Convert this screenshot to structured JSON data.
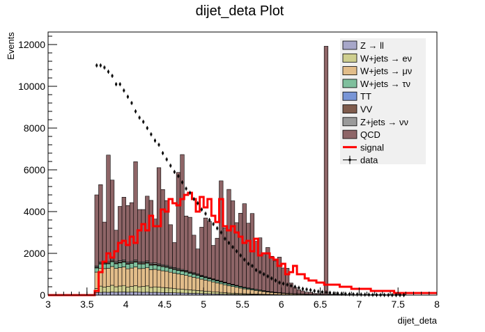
{
  "chart_data": {
    "type": "histogram",
    "title": "dijet_deta Plot",
    "xlabel": "dijet_deta",
    "ylabel": "Events",
    "xlim": [
      3,
      8
    ],
    "ylim": [
      0,
      12600
    ],
    "bin_width": 0.05,
    "x_ticks": [
      3,
      3.5,
      4,
      4.5,
      5,
      5.5,
      6,
      6.5,
      7,
      7.5,
      8
    ],
    "x_tick_labels": [
      "3",
      "3.5",
      "4",
      "4.5",
      "5",
      "5.5",
      "6",
      "6.5",
      "7",
      "7.5",
      "8"
    ],
    "y_ticks": [
      0,
      2000,
      4000,
      6000,
      8000,
      10000,
      12000
    ],
    "y_tick_labels": [
      "0",
      "2000",
      "4000",
      "6000",
      "8000",
      "10000",
      "12000"
    ],
    "legend": {
      "position": "top-right",
      "entries": [
        {
          "label": "Z → ll",
          "color": "#a7a7c9",
          "kind": "box"
        },
        {
          "label": "W+jets → eν",
          "color": "#cfcf8f",
          "kind": "box"
        },
        {
          "label": "W+jets → μν",
          "color": "#e2bd8a",
          "kind": "box"
        },
        {
          "label": "W+jets → τν",
          "color": "#7fbf9d",
          "kind": "box"
        },
        {
          "label": "TT",
          "color": "#7895d6",
          "kind": "box"
        },
        {
          "label": "VV",
          "color": "#7f5c4d",
          "kind": "box"
        },
        {
          "label": "Z+jets → νν",
          "color": "#9a9a9a",
          "kind": "box"
        },
        {
          "label": "QCD",
          "color": "#8e6567",
          "kind": "box"
        },
        {
          "label": "signal",
          "color": "#ff0000",
          "kind": "line"
        },
        {
          "label": "data",
          "color": "#000000",
          "kind": "marker"
        }
      ]
    },
    "stack": [
      {
        "name": "Z → ll",
        "color": "#a7a7c9",
        "bin_start": 3.6,
        "values": [
          120,
          130,
          140,
          135,
          150,
          140,
          145,
          150,
          140,
          145,
          150,
          140,
          135,
          140,
          130,
          135,
          130,
          125,
          120,
          115,
          110,
          105,
          100,
          95,
          90,
          85,
          80,
          75,
          70,
          65,
          60,
          55,
          50,
          45,
          40,
          38,
          35,
          32,
          30,
          28,
          25,
          22,
          20,
          18,
          16,
          14,
          12,
          10,
          9,
          8,
          7,
          6,
          5,
          5,
          4,
          4,
          3,
          3,
          3,
          2,
          2,
          2,
          2,
          1,
          1,
          1,
          1,
          1,
          1,
          1,
          1,
          1,
          1,
          1,
          1,
          1,
          1,
          1,
          1,
          1
        ]
      },
      {
        "name": "W+jets → eν",
        "color": "#cfcf8f",
        "bin_start": 3.6,
        "values": [
          200,
          300,
          250,
          280,
          320,
          260,
          290,
          310,
          250,
          270,
          300,
          260,
          280,
          300,
          240,
          260,
          250,
          240,
          230,
          220,
          200,
          190,
          180,
          170,
          160,
          150,
          140,
          130,
          120,
          110,
          100,
          90,
          80,
          70,
          60,
          55,
          50,
          45,
          40,
          35,
          30,
          28,
          25,
          22,
          20,
          18,
          15,
          12,
          10,
          9,
          8,
          7,
          6,
          5,
          4,
          3,
          3,
          2,
          2,
          2,
          2,
          1,
          1,
          1,
          1,
          1,
          1,
          1,
          1,
          1,
          1,
          1,
          1,
          1,
          1,
          1,
          1,
          1,
          1,
          1
        ]
      },
      {
        "name": "W+jets → μν",
        "color": "#e2bd8a",
        "bin_start": 3.6,
        "values": [
          780,
          850,
          880,
          870,
          900,
          880,
          880,
          890,
          870,
          880,
          900,
          870,
          860,
          870,
          850,
          840,
          820,
          800,
          790,
          760,
          740,
          720,
          700,
          680,
          650,
          620,
          590,
          560,
          530,
          500,
          470,
          440,
          410,
          380,
          350,
          320,
          290,
          260,
          230,
          210,
          190,
          170,
          150,
          130,
          110,
          95,
          80,
          70,
          60,
          50,
          45,
          40,
          35,
          30,
          25,
          20,
          18,
          15,
          12,
          10,
          9,
          8,
          7,
          6,
          5,
          4,
          3,
          3,
          2,
          2,
          2,
          2,
          1,
          1,
          1,
          1,
          1,
          1,
          1,
          1
        ]
      },
      {
        "name": "W+jets → τν",
        "color": "#7fbf9d",
        "bin_start": 3.6,
        "values": [
          200,
          210,
          220,
          215,
          230,
          220,
          225,
          230,
          220,
          225,
          230,
          220,
          215,
          220,
          210,
          205,
          200,
          195,
          190,
          180,
          175,
          170,
          165,
          160,
          150,
          140,
          130,
          120,
          110,
          100,
          95,
          90,
          85,
          80,
          75,
          70,
          65,
          60,
          55,
          50,
          45,
          40,
          35,
          30,
          25,
          22,
          20,
          18,
          15,
          12,
          10,
          9,
          8,
          7,
          6,
          5,
          4,
          3,
          3,
          2,
          2,
          2,
          1,
          1,
          1,
          1,
          1,
          1,
          1,
          1,
          1,
          1,
          1,
          1,
          1,
          1,
          1,
          1,
          1,
          1
        ]
      },
      {
        "name": "TT",
        "color": "#7895d6",
        "bin_start": 3.6,
        "values": [
          10,
          10,
          10,
          10,
          10,
          10,
          10,
          10,
          10,
          10,
          10,
          10,
          10,
          10,
          10,
          10,
          10,
          9,
          9,
          9,
          8,
          8,
          8,
          7,
          7,
          6,
          6,
          5,
          5,
          4,
          4,
          3,
          3,
          3,
          2,
          2,
          2,
          2,
          1,
          1,
          1,
          1,
          1,
          1,
          1,
          1,
          1,
          1,
          1,
          1,
          1,
          1,
          1,
          1,
          1,
          1,
          1,
          1,
          1,
          1,
          1,
          1,
          1,
          1,
          1,
          1,
          1,
          1,
          1,
          1,
          1,
          1,
          1,
          1,
          1,
          1,
          1,
          1,
          1,
          1
        ]
      },
      {
        "name": "VV",
        "color": "#7f5c4d",
        "bin_start": 3.6,
        "values": [
          40,
          40,
          42,
          42,
          44,
          44,
          44,
          44,
          44,
          44,
          44,
          44,
          44,
          44,
          42,
          42,
          42,
          40,
          40,
          40,
          38,
          38,
          36,
          36,
          34,
          34,
          32,
          30,
          30,
          28,
          26,
          24,
          22,
          20,
          18,
          16,
          14,
          12,
          11,
          10,
          9,
          8,
          7,
          6,
          5,
          5,
          4,
          4,
          3,
          3,
          3,
          2,
          2,
          2,
          2,
          1,
          1,
          1,
          1,
          1,
          1,
          1,
          1,
          1,
          1,
          1,
          1,
          1,
          1,
          1,
          1,
          1,
          1,
          1,
          1,
          1,
          1,
          1,
          1,
          1
        ]
      },
      {
        "name": "Z+jets → νν",
        "color": "#9a9a9a",
        "bin_start": 3.6,
        "values": [
          50,
          50,
          55,
          55,
          55,
          55,
          55,
          55,
          55,
          55,
          55,
          55,
          55,
          55,
          55,
          52,
          52,
          50,
          50,
          48,
          46,
          44,
          42,
          40,
          38,
          36,
          34,
          32,
          30,
          28,
          26,
          24,
          22,
          20,
          18,
          16,
          14,
          12,
          11,
          10,
          9,
          8,
          7,
          6,
          5,
          5,
          4,
          4,
          3,
          3,
          3,
          2,
          2,
          2,
          2,
          1,
          1,
          1,
          1,
          1,
          1,
          1,
          1,
          1,
          1,
          1,
          1,
          1,
          1,
          1,
          1,
          1,
          1,
          1,
          1,
          1,
          1,
          1,
          1,
          1
        ]
      },
      {
        "name": "QCD",
        "color": "#8e6567",
        "bin_start": 3.6,
        "values": [
          3400,
          3700,
          1900,
          5100,
          3800,
          1500,
          2600,
          3000,
          2700,
          2800,
          4700,
          2500,
          2500,
          3100,
          3000,
          2100,
          4600,
          3600,
          3100,
          2000,
          1200,
          4600,
          5500,
          2600,
          2600,
          1800,
          1200,
          2300,
          2800,
          2700,
          1600,
          2000,
          4800,
          2600,
          4500,
          4000,
          3000,
          3500,
          4000,
          3100,
          3600,
          2300,
          2500,
          1800,
          2100,
          1700,
          1500,
          1700,
          1200,
          1200,
          500,
          300,
          200,
          150,
          100,
          100,
          50,
          50,
          50,
          11900,
          20,
          20,
          20,
          20,
          10,
          10,
          10,
          10,
          10,
          10,
          10,
          10,
          10,
          10,
          10,
          10,
          10,
          10,
          10,
          10
        ]
      }
    ],
    "signal": {
      "name": "signal",
      "color": "#ff0000",
      "x_start": 3.0,
      "values": [
        0,
        0,
        0,
        0,
        0,
        0,
        0,
        0,
        0,
        0,
        0,
        0,
        200,
        1100,
        1600,
        2000,
        1800,
        2100,
        2500,
        2600,
        2400,
        2800,
        2500,
        3100,
        3400,
        3100,
        3800,
        3300,
        3300,
        4100,
        4000,
        4600,
        4400,
        4300,
        4600,
        4800,
        4900,
        4600,
        4000,
        4700,
        4200,
        4600,
        3800,
        3500,
        4600,
        3300,
        3100,
        3300,
        3000,
        2800,
        2500,
        2600,
        2100,
        2700,
        1900,
        2000,
        2000,
        1800,
        1700,
        1400,
        1500,
        1000,
        1100,
        1400,
        1000,
        1000,
        800,
        700,
        700,
        600,
        600,
        500,
        500,
        500,
        500,
        400,
        400,
        400,
        300,
        300,
        300,
        300,
        300,
        200,
        200,
        200,
        200,
        200,
        200,
        100,
        100,
        100,
        100,
        100,
        100,
        100,
        100,
        100,
        100,
        100
      ]
    },
    "data": {
      "name": "data",
      "color": "#000000",
      "x_start": 3.6,
      "values": [
        11000,
        11000,
        10900,
        10700,
        10500,
        10100,
        10100,
        9800,
        9500,
        9200,
        8800,
        8500,
        8300,
        8000,
        7700,
        7400,
        7200,
        6800,
        6500,
        6200,
        5900,
        5700,
        5400,
        5100,
        4900,
        4600,
        4400,
        4100,
        3900,
        3600,
        3400,
        3200,
        3000,
        2700,
        2500,
        2300,
        2100,
        1900,
        1700,
        1500,
        1400,
        1200,
        1100,
        1000,
        900,
        800,
        700,
        600,
        550,
        500,
        450,
        400,
        350,
        300,
        270,
        240,
        200,
        170,
        150,
        130,
        110,
        90,
        80,
        70,
        60,
        50,
        40,
        35,
        30,
        25,
        20,
        15,
        12,
        10,
        8,
        6,
        5,
        4,
        3,
        2
      ]
    }
  }
}
